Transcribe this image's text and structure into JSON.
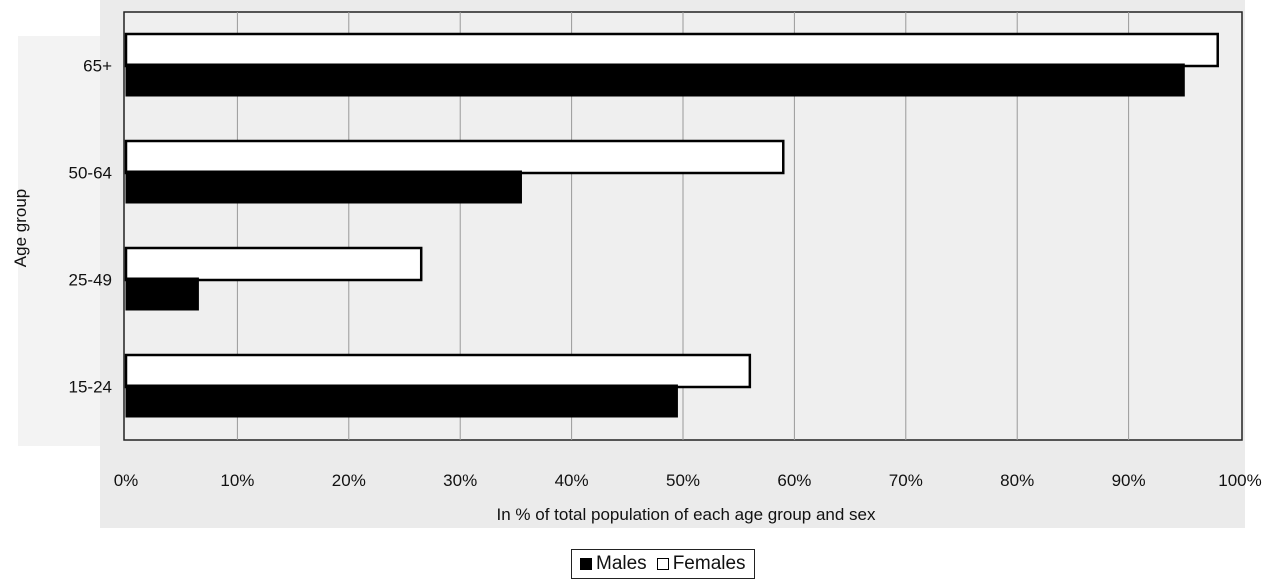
{
  "chart_data": {
    "type": "bar",
    "orientation": "horizontal",
    "categories": [
      "65+",
      "50-64",
      "25-49",
      "15-24"
    ],
    "series": [
      {
        "name": "Females",
        "values": [
          98,
          59,
          26.5,
          56
        ],
        "color": "#ffffff"
      },
      {
        "name": "Males",
        "values": [
          95,
          35.5,
          6.5,
          49.5
        ],
        "color": "#000000"
      }
    ],
    "xlabel": "In % of total population of each age group and sex",
    "ylabel": "Age group",
    "xlim": [
      0,
      100
    ],
    "xticks": [
      "0%",
      "10%",
      "20%",
      "30%",
      "40%",
      "50%",
      "60%",
      "70%",
      "80%",
      "90%",
      "100%"
    ],
    "grid": true,
    "legend_position": "bottom"
  },
  "legend": {
    "males_label": "Males",
    "females_label": "Females"
  }
}
